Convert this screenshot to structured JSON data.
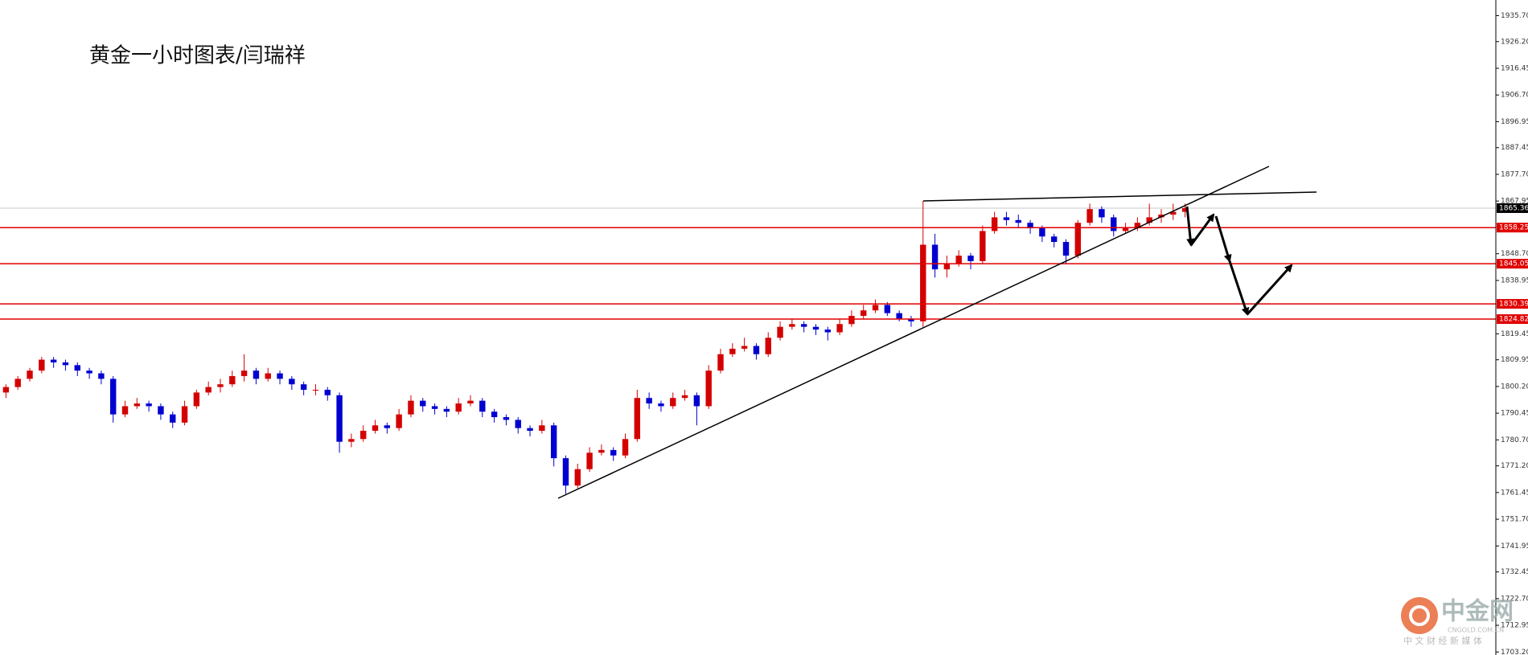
{
  "chart_data": {
    "type": "candlestick",
    "title": "黄金一小时图表/闫瑞祥",
    "up_color": "#d40000",
    "down_color": "#0000d0",
    "ylim": [
      1702.1,
      1941.4
    ],
    "yticks": [
      {
        "value": 1935.7,
        "label": "1935.70"
      },
      {
        "value": 1926.2,
        "label": "1926.20"
      },
      1916.45,
      {
        "value": 1906.7,
        "label": "1906.70"
      },
      1896.95,
      1887.45,
      {
        "value": 1877.7,
        "label": "1877.70"
      },
      1867.95,
      {
        "value": 1848.7,
        "label": "1848.70"
      },
      1838.95,
      1819.45,
      1809.95,
      {
        "value": 1800.2,
        "label": "1800.20"
      },
      1790.45,
      {
        "value": 1780.7,
        "label": "1780.70"
      },
      {
        "value": 1771.2,
        "label": "1771.20"
      },
      1761.45,
      {
        "value": 1751.7,
        "label": "1751.70"
      },
      1741.95,
      1732.45,
      {
        "value": 1722.7,
        "label": "1722.70"
      },
      1712.95,
      {
        "value": 1703.2,
        "label": "1703.20"
      }
    ],
    "levels": [
      1858.25,
      1845.05,
      1830.39,
      1824.82
    ],
    "level_color": "#e00000",
    "current_price": 1865.36,
    "ohlc": [
      [
        1798,
        1801,
        1796,
        1800
      ],
      [
        1800,
        1804,
        1799,
        1803
      ],
      [
        1803,
        1807,
        1802,
        1806
      ],
      [
        1806,
        1811,
        1805,
        1810
      ],
      [
        1810,
        1811,
        1807,
        1809
      ],
      [
        1809,
        1810,
        1806,
        1808
      ],
      [
        1808,
        1809,
        1804,
        1806
      ],
      [
        1806,
        1807,
        1803,
        1805
      ],
      [
        1805,
        1806,
        1801,
        1803
      ],
      [
        1803,
        1804,
        1787,
        1790
      ],
      [
        1790,
        1795,
        1789,
        1793
      ],
      [
        1793,
        1796,
        1792,
        1794
      ],
      [
        1794,
        1795,
        1791,
        1793
      ],
      [
        1793,
        1794,
        1788,
        1790
      ],
      [
        1790,
        1791,
        1785,
        1787
      ],
      [
        1787,
        1795,
        1786,
        1793
      ],
      [
        1793,
        1799,
        1792,
        1798
      ],
      [
        1798,
        1802,
        1797,
        1800
      ],
      [
        1800,
        1803,
        1798,
        1801
      ],
      [
        1801,
        1806,
        1800,
        1804
      ],
      [
        1804,
        1812,
        1802,
        1806
      ],
      [
        1806,
        1807,
        1801,
        1803
      ],
      [
        1803,
        1807,
        1802,
        1805
      ],
      [
        1805,
        1806,
        1801,
        1803
      ],
      [
        1803,
        1804,
        1799,
        1801
      ],
      [
        1801,
        1802,
        1797,
        1799
      ],
      [
        1799,
        1801,
        1797,
        1799
      ],
      [
        1799,
        1800,
        1795,
        1797
      ],
      [
        1797,
        1798,
        1776,
        1780
      ],
      [
        1780,
        1783,
        1778,
        1781
      ],
      [
        1781,
        1786,
        1780,
        1784
      ],
      [
        1784,
        1788,
        1783,
        1786
      ],
      [
        1786,
        1787,
        1783,
        1785
      ],
      [
        1785,
        1792,
        1784,
        1790
      ],
      [
        1790,
        1797,
        1789,
        1795
      ],
      [
        1795,
        1796,
        1791,
        1793
      ],
      [
        1793,
        1794,
        1790,
        1792
      ],
      [
        1792,
        1793,
        1789,
        1791
      ],
      [
        1791,
        1796,
        1790,
        1794
      ],
      [
        1794,
        1797,
        1793,
        1795
      ],
      [
        1795,
        1796,
        1789,
        1791
      ],
      [
        1791,
        1792,
        1787,
        1789
      ],
      [
        1789,
        1790,
        1786,
        1788
      ],
      [
        1788,
        1789,
        1783,
        1785
      ],
      [
        1785,
        1786,
        1782,
        1784
      ],
      [
        1784,
        1788,
        1783,
        1786
      ],
      [
        1786,
        1787,
        1771,
        1774
      ],
      [
        1774,
        1775,
        1761,
        1764
      ],
      [
        1764,
        1772,
        1763,
        1770
      ],
      [
        1770,
        1778,
        1769,
        1776
      ],
      [
        1776,
        1779,
        1775,
        1777
      ],
      [
        1777,
        1778,
        1773,
        1775
      ],
      [
        1775,
        1783,
        1774,
        1781
      ],
      [
        1781,
        1799,
        1780,
        1796
      ],
      [
        1796,
        1798,
        1792,
        1794
      ],
      [
        1794,
        1795,
        1791,
        1793
      ],
      [
        1793,
        1798,
        1792,
        1796
      ],
      [
        1796,
        1799,
        1795,
        1797
      ],
      [
        1797,
        1798,
        1786,
        1793
      ],
      [
        1793,
        1808,
        1792,
        1806
      ],
      [
        1806,
        1814,
        1805,
        1812
      ],
      [
        1812,
        1816,
        1811,
        1814
      ],
      [
        1814,
        1818,
        1813,
        1815
      ],
      [
        1815,
        1816,
        1810,
        1812
      ],
      [
        1812,
        1820,
        1811,
        1818
      ],
      [
        1818,
        1824,
        1817,
        1822
      ],
      [
        1822,
        1825,
        1821,
        1823
      ],
      [
        1823,
        1824,
        1820,
        1822
      ],
      [
        1822,
        1823,
        1819,
        1821
      ],
      [
        1821,
        1822,
        1817,
        1820
      ],
      [
        1820,
        1825,
        1819,
        1823
      ],
      [
        1823,
        1828,
        1822,
        1826
      ],
      [
        1826,
        1830,
        1825,
        1828
      ],
      [
        1828,
        1832,
        1827,
        1830
      ],
      [
        1830,
        1831,
        1826,
        1827
      ],
      [
        1827,
        1828,
        1824,
        1825
      ],
      [
        1825,
        1826,
        1822,
        1824
      ],
      [
        1824,
        1868,
        1822,
        1852
      ],
      [
        1852,
        1856,
        1840,
        1843
      ],
      [
        1843,
        1848,
        1840,
        1845
      ],
      [
        1845,
        1850,
        1844,
        1848
      ],
      [
        1848,
        1849,
        1843,
        1846
      ],
      [
        1846,
        1859,
        1845,
        1857
      ],
      [
        1857,
        1864,
        1856,
        1862
      ],
      [
        1862,
        1864,
        1859,
        1861
      ],
      [
        1861,
        1863,
        1858,
        1860
      ],
      [
        1860,
        1861,
        1856,
        1858
      ],
      [
        1858,
        1859,
        1853,
        1855
      ],
      [
        1855,
        1856,
        1851,
        1853
      ],
      [
        1853,
        1854,
        1845,
        1848
      ],
      [
        1848,
        1861,
        1847,
        1860
      ],
      [
        1860,
        1867,
        1859,
        1865
      ],
      [
        1865,
        1866,
        1860,
        1862
      ],
      [
        1862,
        1863,
        1855,
        1857
      ],
      [
        1857,
        1860,
        1856,
        1858
      ],
      [
        1858,
        1862,
        1857,
        1860
      ],
      [
        1860,
        1867,
        1859,
        1862
      ],
      [
        1862,
        1865,
        1860,
        1863
      ],
      [
        1863,
        1867,
        1861,
        1864
      ],
      [
        1864,
        1867,
        1862,
        1865.36
      ]
    ]
  },
  "watermark": {
    "brand": "中金网",
    "domain": "CNGOLD.COM.CN",
    "slogan": "中 文 财 经 新 媒 体"
  }
}
